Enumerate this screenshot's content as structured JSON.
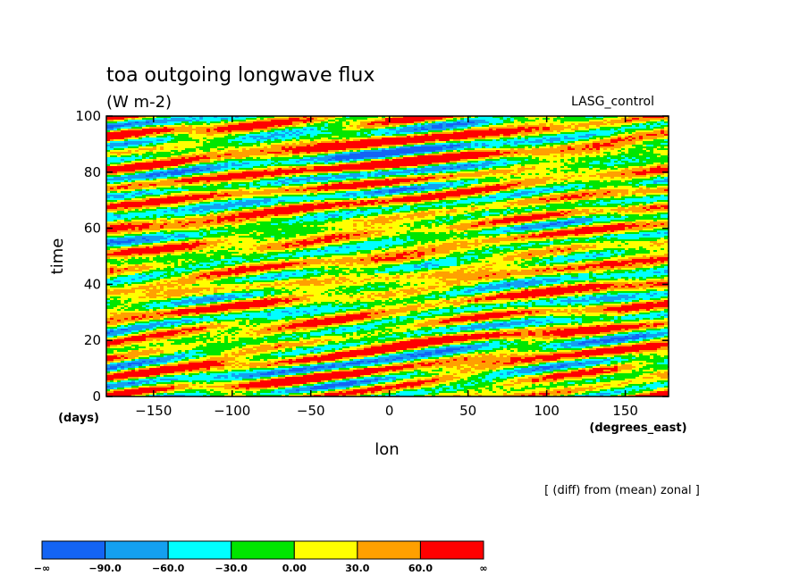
{
  "chart_data": {
    "type": "heatmap",
    "title": "toa outgoing longwave flux",
    "subtitle": "(W m-2)",
    "run_label": "LASG_control",
    "xlabel": "lon",
    "x_units": "(degrees_east)",
    "ylabel": "time",
    "y_units": "(days)",
    "xlim": [
      -180,
      177.5
    ],
    "ylim": [
      0,
      100
    ],
    "x_ticks": [
      -150,
      -100,
      -50,
      0,
      50,
      100,
      150
    ],
    "x_tick_labels": [
      "−150",
      "−100",
      "−50",
      "0",
      "50",
      "100",
      "150"
    ],
    "y_ticks": [
      0,
      20,
      40,
      60,
      80,
      100
    ],
    "y_tick_labels": [
      "0",
      "20",
      "40",
      "60",
      "80",
      "100"
    ],
    "annotation": "[ (diff) from (mean) zonal ]",
    "colorbar": {
      "colors": [
        "#1464f4",
        "#14a0f0",
        "#00ffff",
        "#00e600",
        "#ffff00",
        "#ffa000",
        "#ff0000"
      ],
      "boundary_labels": [
        "−∞",
        "−90.0",
        "−60.0",
        "−30.0",
        "0.00",
        "30.0",
        "60.0",
        "∞"
      ],
      "boundaries": [
        -90,
        -60,
        -30,
        0,
        30,
        60
      ]
    },
    "field_description_values_range": [
      -90,
      90
    ]
  }
}
